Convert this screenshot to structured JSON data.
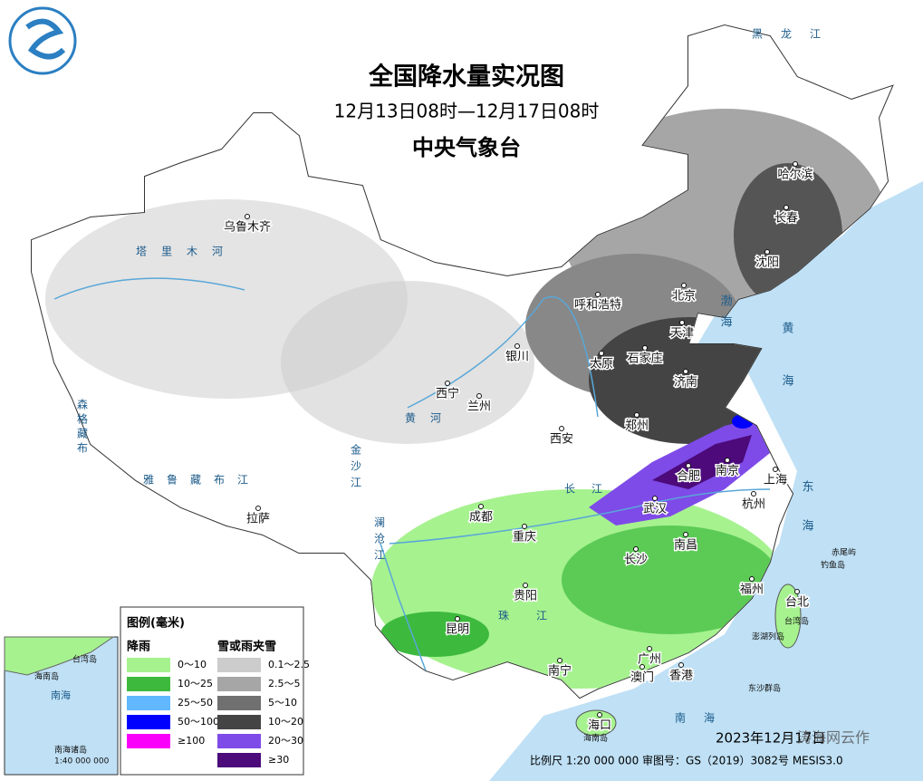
{
  "header": {
    "title": "全国降水量实况图",
    "subtitle": "12月13日08时—12月17日08时",
    "publisher": "中央气象台"
  },
  "legend": {
    "title": "图例(毫米)",
    "rain": {
      "title": "降雨",
      "items": [
        {
          "label": "0～10",
          "color": "#a6f28f"
        },
        {
          "label": "10～25",
          "color": "#3dba3d"
        },
        {
          "label": "25～50",
          "color": "#61b8ff"
        },
        {
          "label": "50～100",
          "color": "#0000fe"
        },
        {
          "label": "≥100",
          "color": "#fa00fa"
        }
      ]
    },
    "snow": {
      "title": "雪或雨夹雪",
      "items": [
        {
          "label": "0.1～2.5",
          "color": "#cccccc"
        },
        {
          "label": "2.5～5",
          "color": "#a6a6a6"
        },
        {
          "label": "5～10",
          "color": "#707070"
        },
        {
          "label": "10～20",
          "color": "#444444"
        },
        {
          "label": "20～30",
          "color": "#7e4be8"
        },
        {
          "label": "≥30",
          "color": "#4c0a7a"
        }
      ]
    }
  },
  "cities": [
    "哈尔滨",
    "长春",
    "沈阳",
    "北京",
    "天津",
    "呼和浩特",
    "石家庄",
    "太原",
    "济南",
    "银川",
    "西宁",
    "兰州",
    "郑州",
    "西安",
    "合肥",
    "南京",
    "上海",
    "乌鲁木齐",
    "武汉",
    "杭州",
    "成都",
    "重庆",
    "拉萨",
    "南昌",
    "长沙",
    "福州",
    "台北",
    "贵阳",
    "昆明",
    "南宁",
    "广州",
    "澳门",
    "香港",
    "海口"
  ],
  "islands": [
    "赤尾屿",
    "钓鱼岛",
    "台湾岛",
    "澎湖列岛",
    "东沙群岛",
    "海南岛"
  ],
  "seas": [
    "渤海",
    "黄海",
    "东海",
    "南海"
  ],
  "rivers": [
    "塔里木河",
    "黄河",
    "长江",
    "黑龙江",
    "雅鲁藏布江",
    "澜沧江",
    "金沙江",
    "珠江",
    "森格藏布"
  ],
  "inset": {
    "labels": [
      "台湾岛",
      "海南岛",
      "南海",
      "南海诸岛",
      "1:40 000 000"
    ]
  },
  "footer": {
    "scale": "比例尺 1:20 000 000 审图号：GS（2019）3082号 MESIS3.0",
    "date": "2023年12月17日",
    "watermark": "涛海网云作"
  }
}
